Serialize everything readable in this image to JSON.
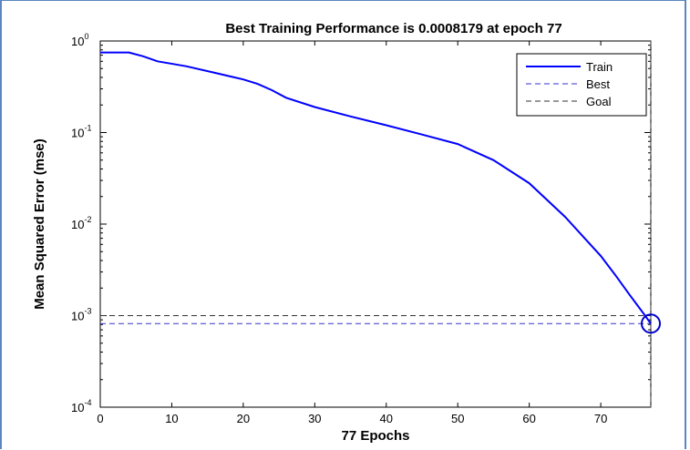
{
  "chart_data": {
    "type": "line",
    "title": "Best Training Performance is 0.0008179 at epoch 77",
    "xlabel": "77 Epochs",
    "ylabel": "Mean Squared Error  (mse)",
    "y_scale": "log",
    "xlim": [
      0,
      77
    ],
    "ylim": [
      0.0001,
      1
    ],
    "x_ticks": [
      "0",
      "10",
      "20",
      "30",
      "40",
      "50",
      "60",
      "70"
    ],
    "y_ticks": [
      {
        "base": "10",
        "exp": "0"
      },
      {
        "base": "10",
        "exp": "-1"
      },
      {
        "base": "10",
        "exp": "-2"
      },
      {
        "base": "10",
        "exp": "-3"
      },
      {
        "base": "10",
        "exp": "-4"
      }
    ],
    "legend": [
      "Train",
      "Best",
      "Goal"
    ],
    "legend_position": "top-right",
    "colors": {
      "train": "#0000ff",
      "best": "#3333cc",
      "goal": "#333333"
    },
    "series": [
      {
        "name": "Train",
        "x": [
          0,
          4,
          6,
          8,
          12,
          16,
          20,
          22,
          24,
          26,
          30,
          35,
          40,
          45,
          50,
          55,
          60,
          65,
          70,
          72,
          74,
          76,
          77
        ],
        "y": [
          0.75,
          0.75,
          0.68,
          0.6,
          0.53,
          0.45,
          0.38,
          0.34,
          0.29,
          0.24,
          0.19,
          0.15,
          0.12,
          0.095,
          0.075,
          0.05,
          0.028,
          0.012,
          0.0045,
          0.0028,
          0.0017,
          0.00105,
          0.000818
        ]
      }
    ],
    "best": {
      "epoch": 77,
      "value": 0.0008179
    },
    "goal": 0.001
  }
}
